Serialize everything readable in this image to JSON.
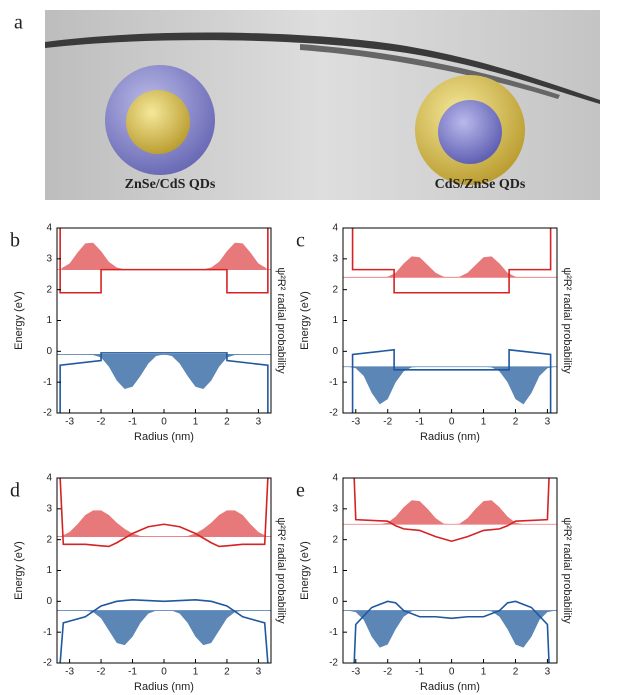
{
  "panel_a": {
    "label": "a",
    "captions": [
      "ZnSe/CdS QDs",
      "CdS/ZnSe QDs"
    ]
  },
  "chart_data": [
    {
      "type": "line",
      "label": "b",
      "xlabel": "Radius (nm)",
      "ylabel": "Energy (eV)",
      "y2label": "ψ²R² radial probability",
      "xlim": [
        -3.4,
        3.4
      ],
      "ylim": [
        -2,
        4
      ],
      "xticks": [
        -3,
        -2,
        -1,
        0,
        1,
        2,
        3
      ],
      "yticks": [
        -2,
        -1,
        0,
        1,
        2,
        3,
        4
      ],
      "x": [
        -3.25,
        -3,
        -2.75,
        -2.5,
        -2.25,
        -2,
        -1.75,
        -1.5,
        -1.25,
        -1,
        -0.75,
        -0.5,
        -0.25,
        0,
        0.25,
        0.5,
        0.75,
        1,
        1.25,
        1.5,
        1.75,
        2,
        2.25,
        2.5,
        2.75,
        3,
        3.25
      ],
      "series": [
        {
          "kind": "area",
          "color": "#e8797b",
          "level": 2.65,
          "values": [
            2.7,
            2.85,
            3.2,
            3.5,
            3.52,
            3.25,
            2.9,
            2.72,
            2.66,
            2.65,
            2.65,
            2.65,
            2.65,
            2.65,
            2.65,
            2.65,
            2.65,
            2.65,
            2.66,
            2.72,
            2.9,
            3.25,
            3.52,
            3.5,
            3.2,
            2.85,
            2.7
          ]
        },
        {
          "kind": "area",
          "color": "#5b86b5",
          "level": -0.1,
          "values": [
            -0.1,
            -0.1,
            -0.1,
            -0.1,
            -0.12,
            -0.2,
            -0.5,
            -0.95,
            -1.22,
            -1.15,
            -0.8,
            -0.4,
            -0.15,
            -0.1,
            -0.15,
            -0.4,
            -0.8,
            -1.15,
            -1.22,
            -0.95,
            -0.5,
            -0.2,
            -0.12,
            -0.1,
            -0.1,
            -0.1,
            -0.1
          ]
        },
        {
          "kind": "line",
          "color": "#d62222",
          "x": [
            -3.3,
            -3.3,
            -2,
            -2,
            2,
            2,
            3.3,
            3.3
          ],
          "values": [
            4,
            1.9,
            1.9,
            2.65,
            2.65,
            1.9,
            1.9,
            4
          ]
        },
        {
          "kind": "line",
          "color": "#1f57a0",
          "x": [
            -3.3,
            -3.3,
            -2,
            -2,
            2,
            2,
            3.3,
            3.3
          ],
          "values": [
            -2,
            -0.45,
            -0.3,
            -0.05,
            -0.05,
            -0.3,
            -0.45,
            -2
          ]
        }
      ]
    },
    {
      "type": "line",
      "label": "c",
      "xlabel": "Radius (nm)",
      "ylabel": "Energy (eV)",
      "y2label": "ψ²R² radial probability",
      "xlim": [
        -3.4,
        3.3
      ],
      "ylim": [
        -2,
        4
      ],
      "xticks": [
        -3,
        -2,
        -1,
        0,
        1,
        2,
        3
      ],
      "yticks": [
        -2,
        -1,
        0,
        1,
        2,
        3,
        4
      ],
      "x": [
        -3.25,
        -3,
        -2.75,
        -2.5,
        -2.25,
        -2,
        -1.75,
        -1.5,
        -1.25,
        -1,
        -0.75,
        -0.5,
        -0.25,
        0,
        0.25,
        0.5,
        0.75,
        1,
        1.25,
        1.5,
        1.75,
        2,
        2.25,
        2.5,
        2.75,
        3,
        3.25
      ],
      "series": [
        {
          "kind": "area",
          "color": "#e8797b",
          "level": 2.4,
          "values": [
            2.4,
            2.4,
            2.4,
            2.4,
            2.4,
            2.42,
            2.55,
            2.85,
            3.08,
            3.05,
            2.8,
            2.55,
            2.42,
            2.4,
            2.42,
            2.55,
            2.8,
            3.05,
            3.08,
            2.85,
            2.55,
            2.42,
            2.4,
            2.4,
            2.4,
            2.4,
            2.4
          ]
        },
        {
          "kind": "area",
          "color": "#5b86b5",
          "level": -0.5,
          "values": [
            -0.5,
            -0.55,
            -0.8,
            -1.35,
            -1.72,
            -1.55,
            -1.0,
            -0.65,
            -0.52,
            -0.5,
            -0.5,
            -0.5,
            -0.5,
            -0.5,
            -0.5,
            -0.5,
            -0.5,
            -0.5,
            -0.52,
            -0.65,
            -1.0,
            -1.55,
            -1.72,
            -1.35,
            -0.8,
            -0.55,
            -0.5
          ]
        },
        {
          "kind": "line",
          "color": "#d62222",
          "x": [
            -3.1,
            -3.1,
            -1.8,
            -1.8,
            1.8,
            1.8,
            3.1,
            3.1
          ],
          "values": [
            4,
            2.65,
            2.65,
            1.9,
            1.9,
            2.65,
            2.65,
            4
          ]
        },
        {
          "kind": "line",
          "color": "#1f57a0",
          "x": [
            -3.1,
            -3.1,
            -1.8,
            -1.8,
            1.8,
            1.8,
            3.1,
            3.1
          ],
          "values": [
            -2,
            -0.1,
            0.05,
            -0.6,
            -0.6,
            0.05,
            -0.1,
            -2
          ]
        }
      ]
    },
    {
      "type": "line",
      "label": "d",
      "xlabel": "Radius (nm)",
      "ylabel": "Energy (eV)",
      "y2label": "ψ²R² radial probability",
      "xlim": [
        -3.4,
        3.4
      ],
      "ylim": [
        -2,
        4
      ],
      "xticks": [
        -3,
        -2,
        -1,
        0,
        1,
        2,
        3
      ],
      "yticks": [
        -2,
        -1,
        0,
        1,
        2,
        3,
        4
      ],
      "x": [
        -3.25,
        -3,
        -2.75,
        -2.5,
        -2.25,
        -2,
        -1.75,
        -1.5,
        -1.25,
        -1,
        -0.75,
        -0.5,
        -0.25,
        0,
        0.25,
        0.5,
        0.75,
        1,
        1.25,
        1.5,
        1.75,
        2,
        2.25,
        2.5,
        2.75,
        3,
        3.25
      ],
      "series": [
        {
          "kind": "area",
          "color": "#e8797b",
          "level": 2.1,
          "values": [
            2.12,
            2.25,
            2.5,
            2.8,
            2.95,
            2.95,
            2.8,
            2.55,
            2.35,
            2.2,
            2.12,
            2.1,
            2.1,
            2.1,
            2.1,
            2.1,
            2.12,
            2.2,
            2.35,
            2.55,
            2.8,
            2.95,
            2.95,
            2.8,
            2.5,
            2.25,
            2.12
          ]
        },
        {
          "kind": "area",
          "color": "#5b86b5",
          "level": -0.3,
          "values": [
            -0.3,
            -0.3,
            -0.3,
            -0.3,
            -0.35,
            -0.55,
            -0.95,
            -1.35,
            -1.42,
            -1.15,
            -0.7,
            -0.4,
            -0.3,
            -0.3,
            -0.3,
            -0.4,
            -0.7,
            -1.15,
            -1.42,
            -1.35,
            -0.95,
            -0.55,
            -0.35,
            -0.3,
            -0.3,
            -0.3,
            -0.3
          ]
        },
        {
          "kind": "line",
          "color": "#d62222",
          "x": [
            -3.3,
            -3.2,
            -2.5,
            -2,
            -1.75,
            -1.5,
            -1,
            -0.5,
            0,
            0.5,
            1,
            1.5,
            1.75,
            2,
            2.5,
            3.2,
            3.3
          ],
          "values": [
            4,
            1.85,
            1.85,
            1.8,
            1.78,
            1.9,
            2.2,
            2.42,
            2.5,
            2.42,
            2.2,
            1.9,
            1.78,
            1.8,
            1.85,
            1.85,
            4
          ]
        },
        {
          "kind": "line",
          "color": "#1f57a0",
          "x": [
            -3.3,
            -3.2,
            -2.5,
            -2,
            -1.5,
            -1,
            0,
            1,
            1.5,
            2,
            2.5,
            3.2,
            3.3
          ],
          "values": [
            -2,
            -0.7,
            -0.5,
            -0.15,
            0,
            0.05,
            0,
            0.05,
            0,
            -0.15,
            -0.5,
            -0.7,
            -2
          ]
        }
      ]
    },
    {
      "type": "line",
      "label": "e",
      "xlabel": "Radius (nm)",
      "ylabel": "Energy (eV)",
      "y2label": "ψ²R² radial probability",
      "xlim": [
        -3.4,
        3.3
      ],
      "ylim": [
        -2,
        4
      ],
      "xticks": [
        -3,
        -2,
        -1,
        0,
        1,
        2,
        3
      ],
      "yticks": [
        -2,
        -1,
        0,
        1,
        2,
        3,
        4
      ],
      "x": [
        -3.25,
        -3,
        -2.75,
        -2.5,
        -2.25,
        -2,
        -1.75,
        -1.5,
        -1.25,
        -1,
        -0.75,
        -0.5,
        -0.25,
        0,
        0.25,
        0.5,
        0.75,
        1,
        1.25,
        1.5,
        1.75,
        2,
        2.25,
        2.5,
        2.75,
        3,
        3.25
      ],
      "series": [
        {
          "kind": "area",
          "color": "#e8797b",
          "level": 2.5,
          "values": [
            2.5,
            2.5,
            2.5,
            2.5,
            2.5,
            2.55,
            2.75,
            3.05,
            3.28,
            3.25,
            3.0,
            2.7,
            2.52,
            2.5,
            2.52,
            2.7,
            3.0,
            3.25,
            3.28,
            3.05,
            2.75,
            2.55,
            2.5,
            2.5,
            2.5,
            2.5,
            2.5
          ]
        },
        {
          "kind": "area",
          "color": "#5b86b5",
          "level": -0.3,
          "values": [
            -0.3,
            -0.35,
            -0.6,
            -1.15,
            -1.5,
            -1.4,
            -0.9,
            -0.5,
            -0.32,
            -0.3,
            -0.3,
            -0.3,
            -0.3,
            -0.3,
            -0.3,
            -0.3,
            -0.3,
            -0.3,
            -0.32,
            -0.5,
            -0.9,
            -1.4,
            -1.5,
            -1.15,
            -0.6,
            -0.35,
            -0.3
          ]
        },
        {
          "kind": "line",
          "color": "#d62222",
          "x": [
            -3.05,
            -3,
            -2,
            -1.75,
            -1.5,
            -1,
            -0.5,
            0,
            0.5,
            1,
            1.5,
            1.75,
            2,
            3,
            3.05
          ],
          "values": [
            4,
            2.65,
            2.6,
            2.45,
            2.35,
            2.3,
            2.1,
            1.95,
            2.1,
            2.3,
            2.35,
            2.45,
            2.6,
            2.65,
            4
          ]
        },
        {
          "kind": "line",
          "color": "#1f57a0",
          "x": [
            -3.05,
            -3,
            -2.5,
            -2,
            -1.75,
            -1.5,
            -1,
            -0.5,
            0,
            0.5,
            1,
            1.5,
            1.75,
            2,
            2.5,
            3,
            3.05
          ],
          "values": [
            -2,
            -0.75,
            -0.2,
            0,
            -0.05,
            -0.3,
            -0.5,
            -0.5,
            -0.55,
            -0.5,
            -0.5,
            -0.3,
            -0.05,
            0,
            -0.2,
            -0.75,
            -2
          ]
        }
      ]
    }
  ]
}
